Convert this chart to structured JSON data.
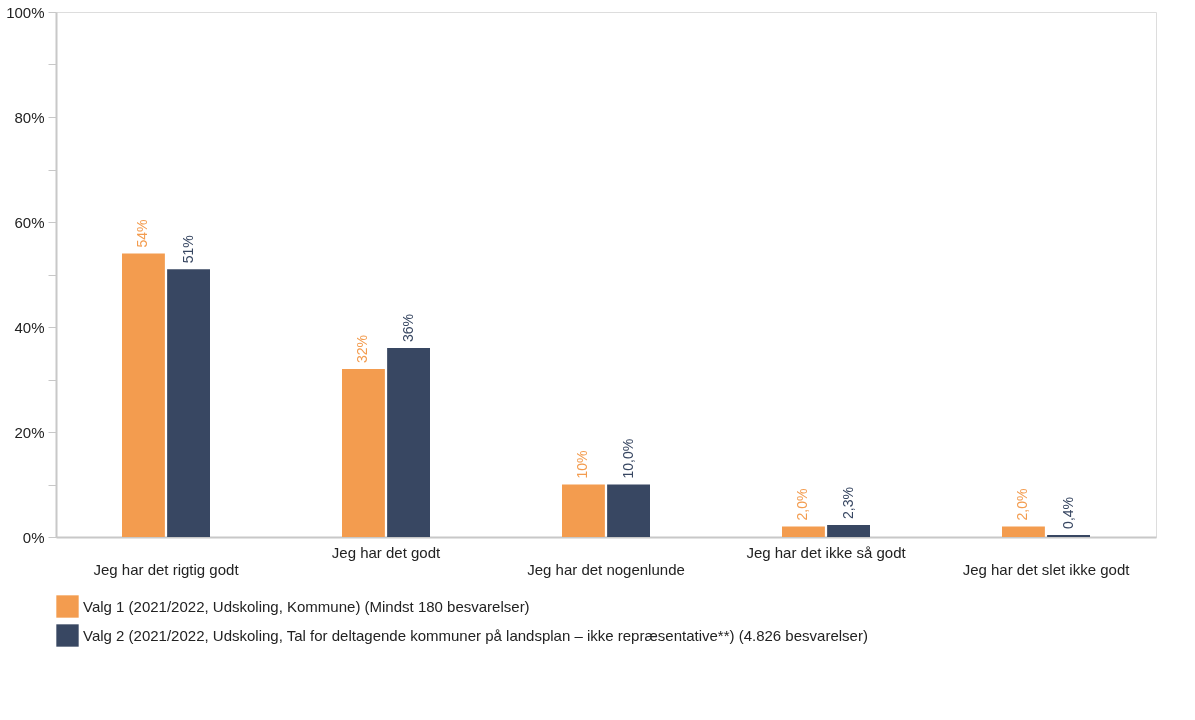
{
  "chart_data": {
    "type": "bar",
    "categories": [
      "Jeg har det rigtig godt",
      "Jeg har det godt",
      "Jeg har det nogenlunde",
      "Jeg har det ikke så godt",
      "Jeg har det slet ikke godt"
    ],
    "series": [
      {
        "name": "Valg 1 (2021/2022, Udskoling, Kommune) (Mindst 180 besvarelser)",
        "color": "#f39c4f",
        "values": [
          54,
          32,
          10,
          2.0,
          2.0
        ],
        "value_labels": [
          "54%",
          "32%",
          "10%",
          "2,0%",
          "2,0%"
        ]
      },
      {
        "name": "Valg 2 (2021/2022, Udskoling, Tal for deltagende kommuner på landsplan – ikke repræsentative**) (4.826 besvarelser)",
        "color": "#384762",
        "values": [
          51,
          36,
          10.0,
          2.3,
          0.4
        ],
        "value_labels": [
          "51%",
          "36%",
          "10,0%",
          "2,3%",
          "0,4%"
        ]
      }
    ],
    "ylim": [
      0,
      100
    ],
    "yticks": [
      {
        "value": 0,
        "label": "0%"
      },
      {
        "value": 10,
        "label": null
      },
      {
        "value": 20,
        "label": "20%"
      },
      {
        "value": 30,
        "label": null
      },
      {
        "value": 40,
        "label": "40%"
      },
      {
        "value": 50,
        "label": null
      },
      {
        "value": 60,
        "label": "60%"
      },
      {
        "value": 70,
        "label": null
      },
      {
        "value": 80,
        "label": "80%"
      },
      {
        "value": 90,
        "label": null
      },
      {
        "value": 100,
        "label": "100%"
      }
    ],
    "grid": false,
    "legend": "bottom"
  }
}
